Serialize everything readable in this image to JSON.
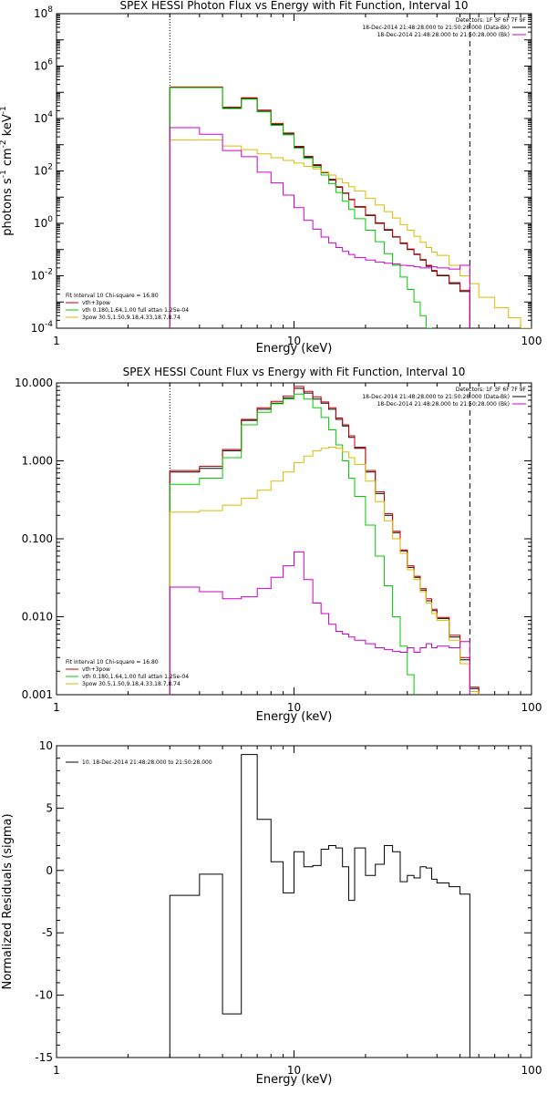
{
  "chart_data": [
    {
      "type": "line",
      "title": "SPEX HESSI Photon Flux vs Energy with Fit Function, Interval 10",
      "xlabel": "Energy (keV)",
      "ylabel_parts": [
        "photons s",
        "-1",
        " cm",
        "-2",
        " keV",
        "-1"
      ],
      "x_scale": "log",
      "y_scale": "log",
      "xlim": [
        1,
        100
      ],
      "ylim": [
        0.0001,
        100000000
      ],
      "x_ticks": [
        {
          "v": 1,
          "label": "1"
        },
        {
          "v": 10,
          "label": "10"
        },
        {
          "v": 100,
          "label": "100"
        }
      ],
      "y_ticks": [
        {
          "v": 0.0001,
          "base": "10",
          "exp": "-4"
        },
        {
          "v": 0.01,
          "base": "10",
          "exp": "-2"
        },
        {
          "v": 1,
          "base": "10",
          "exp": "0"
        },
        {
          "v": 100,
          "base": "10",
          "exp": "2"
        },
        {
          "v": 10000,
          "base": "10",
          "exp": "4"
        },
        {
          "v": 1000000,
          "base": "10",
          "exp": "6"
        },
        {
          "v": 100000000,
          "base": "10",
          "exp": "8"
        }
      ],
      "vlines": [
        {
          "x": 3,
          "style": "dotted",
          "color": "#000000"
        },
        {
          "x": 55,
          "style": "dashed",
          "color": "#000000"
        }
      ],
      "legend_top_right": {
        "detectors": "Detectors: 1F 3F 6F 7F 9F",
        "entries": [
          {
            "text": "18-Dec-2014 21:48:28.000 to 21:50:28.000 (Data-Bk)",
            "color": "#000000"
          },
          {
            "text": "18-Dec-2014 21:48:28.000 to 21:50:28.000 (Bk)",
            "color": "#cc00cc"
          }
        ]
      },
      "legend_bottom_left": {
        "header": "Fit Interval 10   Chi-square = 16.80",
        "entries": [
          {
            "text": "vth+3pow",
            "color": "#cc0000"
          },
          {
            "text": "vth 0.180,1.64,1.00  full attan 1.25e-04",
            "color": "#00cc00"
          },
          {
            "text": "3pow 30.5,1.50,9.18,4.33,18.7,8.74",
            "color": "#ddbb00"
          }
        ]
      },
      "edges": [
        3,
        4,
        5,
        6,
        7,
        8,
        9,
        10,
        11,
        12,
        13,
        14,
        15,
        16,
        17,
        18,
        20,
        22,
        24,
        26,
        28,
        30,
        32,
        34,
        36,
        38,
        40,
        45,
        50,
        55,
        60,
        70,
        80,
        90,
        100
      ],
      "series": [
        {
          "color": "#000000",
          "values": [
            155000,
            155000,
            25000,
            58000,
            19000,
            6000,
            2600,
            800,
            330,
            160,
            85,
            45,
            24,
            14,
            8,
            4.2,
            2.0,
            1.0,
            0.55,
            0.3,
            0.17,
            0.1,
            0.065,
            0.04,
            0.023,
            0.015,
            0.01,
            0.005,
            0.0025,
            null,
            null,
            null,
            null,
            null
          ]
        },
        {
          "color": "#cc0000",
          "values": [
            160000,
            160000,
            27000,
            62000,
            21000,
            6500,
            2800,
            870,
            360,
            175,
            90,
            48,
            25,
            14.5,
            8.3,
            4.4,
            2.1,
            1.05,
            0.58,
            0.31,
            0.18,
            0.105,
            0.068,
            0.042,
            0.025,
            0.016,
            0.0105,
            0.0055,
            0.0028,
            null,
            null,
            null,
            null,
            null
          ]
        },
        {
          "color": "#00cc00",
          "values": [
            150000,
            150000,
            24000,
            55000,
            18000,
            5500,
            2400,
            750,
            300,
            140,
            70,
            33,
            15,
            7,
            3.4,
            1.5,
            0.55,
            0.2,
            0.07,
            0.025,
            0.009,
            0.003,
            0.001,
            0.0003,
            0.0001,
            null,
            null,
            null,
            null,
            null,
            null,
            null,
            null,
            null
          ]
        },
        {
          "color": "#ddbb00",
          "values": [
            1500,
            1500,
            900,
            650,
            450,
            320,
            250,
            200,
            150,
            120,
            90,
            70,
            50,
            35,
            25,
            17,
            9,
            5,
            2.8,
            1.6,
            0.9,
            0.55,
            0.32,
            0.19,
            0.12,
            0.08,
            0.06,
            0.025,
            0.01,
            0.005,
            0.0015,
            0.0006,
            0.00025,
            0.0001
          ]
        },
        {
          "color": "#cc00cc",
          "values": [
            4500,
            2500,
            600,
            350,
            90,
            35,
            12,
            4,
            1.3,
            0.6,
            0.3,
            0.18,
            0.12,
            0.085,
            0.065,
            0.05,
            0.04,
            0.033,
            0.03,
            0.028,
            0.025,
            0.024,
            0.022,
            0.02,
            0.02,
            0.022,
            0.02,
            0.018,
            0.025,
            null,
            null,
            null,
            null,
            null
          ]
        }
      ]
    },
    {
      "type": "line",
      "title": "SPEX HESSI Count Flux vs Energy with Fit Function, Interval 10",
      "xlabel": "Energy (keV)",
      "x_scale": "log",
      "y_scale": "log",
      "xlim": [
        1,
        100
      ],
      "ylim": [
        0.001,
        10
      ],
      "x_ticks": [
        {
          "v": 1,
          "label": "1"
        },
        {
          "v": 10,
          "label": "10"
        },
        {
          "v": 100,
          "label": "100"
        }
      ],
      "y_ticks": [
        {
          "v": 0.001,
          "label": "0.001"
        },
        {
          "v": 0.01,
          "label": "0.010"
        },
        {
          "v": 0.1,
          "label": "0.100"
        },
        {
          "v": 1,
          "label": "1.000"
        },
        {
          "v": 10,
          "label": "10.000"
        }
      ],
      "vlines": [
        {
          "x": 3,
          "style": "dotted",
          "color": "#000000"
        },
        {
          "x": 55,
          "style": "dashed",
          "color": "#000000"
        }
      ],
      "legend_top_right": {
        "detectors": "Detectors: 1F 3F 6F 7F 9F",
        "entries": [
          {
            "text": "18-Dec-2014 21:48:28.000 to 21:50:28.000 (Data-Bk)",
            "color": "#000000"
          },
          {
            "text": "18-Dec-2014 21:48:28.000 to 21:50:28.000 (Bk)",
            "color": "#cc00cc"
          }
        ]
      },
      "legend_bottom_left": {
        "header": "Fit Interval 10   Chi-square = 16.80",
        "entries": [
          {
            "text": "vth+3pow",
            "color": "#cc0000"
          },
          {
            "text": "vth 0.180,1.64,1.00  full attan 1.25e-04",
            "color": "#00cc00"
          },
          {
            "text": "3pow 30.5,1.50,9.18,4.33,18.7,8.74",
            "color": "#ddbb00"
          }
        ]
      },
      "edges": [
        3,
        4,
        5,
        6,
        7,
        8,
        9,
        10,
        11,
        12,
        13,
        14,
        15,
        16,
        17,
        18,
        20,
        22,
        24,
        26,
        28,
        30,
        32,
        34,
        36,
        38,
        40,
        45,
        50,
        55,
        60
      ],
      "series": [
        {
          "color": "#000000",
          "values": [
            0.72,
            0.8,
            1.35,
            3.3,
            4.6,
            5.5,
            6.4,
            8.5,
            7.4,
            6.2,
            5.5,
            4.6,
            3.4,
            2.8,
            2.0,
            1.45,
            0.72,
            0.38,
            0.2,
            0.12,
            0.07,
            0.043,
            0.032,
            0.022,
            0.016,
            0.012,
            0.0095,
            0.0055,
            0.0028,
            0.0012
          ]
        },
        {
          "color": "#cc0000",
          "values": [
            0.75,
            0.85,
            1.4,
            3.4,
            4.8,
            5.8,
            6.8,
            9.0,
            7.8,
            6.6,
            5.7,
            4.8,
            3.55,
            2.9,
            2.1,
            1.5,
            0.75,
            0.4,
            0.21,
            0.125,
            0.072,
            0.045,
            0.033,
            0.023,
            0.017,
            0.0125,
            0.0098,
            0.0058,
            0.003,
            0.00125
          ]
        },
        {
          "color": "#00cc00",
          "values": [
            0.5,
            0.6,
            1.1,
            2.9,
            4.2,
            5.4,
            6.2,
            7.2,
            6.2,
            4.8,
            3.6,
            2.5,
            1.6,
            1.0,
            0.6,
            0.35,
            0.15,
            0.06,
            0.025,
            0.01,
            0.0042,
            0.0018,
            null,
            null,
            null,
            null,
            null,
            null,
            null,
            null
          ]
        },
        {
          "color": "#ddbb00",
          "values": [
            0.22,
            0.23,
            0.27,
            0.33,
            0.42,
            0.55,
            0.72,
            0.95,
            1.15,
            1.35,
            1.45,
            1.5,
            1.45,
            1.3,
            1.1,
            0.9,
            0.55,
            0.3,
            0.17,
            0.1,
            0.065,
            0.04,
            0.03,
            0.021,
            0.015,
            0.011,
            0.009,
            0.005,
            0.0025,
            0.0011
          ]
        },
        {
          "color": "#cc00cc",
          "values": [
            0.024,
            0.021,
            0.017,
            0.018,
            0.023,
            0.032,
            0.045,
            0.068,
            0.03,
            0.015,
            0.011,
            0.008,
            0.0065,
            0.006,
            0.0055,
            0.005,
            0.0045,
            0.004,
            0.0038,
            0.0036,
            0.0035,
            0.004,
            0.0035,
            0.004,
            0.0045,
            0.004,
            0.0042,
            0.004,
            0.0048,
            null
          ]
        }
      ]
    },
    {
      "type": "line",
      "title": "",
      "xlabel": "Energy (keV)",
      "ylabel": "Normalized Residuals (sigma)",
      "x_scale": "log",
      "y_scale": "linear",
      "xlim": [
        1,
        100
      ],
      "ylim": [
        -15,
        10
      ],
      "x_ticks": [
        {
          "v": 1,
          "label": "1"
        },
        {
          "v": 10,
          "label": "10"
        },
        {
          "v": 100,
          "label": "100"
        }
      ],
      "y_ticks": [
        {
          "v": -15,
          "label": "-15"
        },
        {
          "v": -10,
          "label": "-10"
        },
        {
          "v": -5,
          "label": "-5"
        },
        {
          "v": 0,
          "label": "0"
        },
        {
          "v": 5,
          "label": "5"
        },
        {
          "v": 10,
          "label": "10"
        }
      ],
      "legend_top_left": {
        "text": "10. 18-Dec-2014 21:48:28.000 to 21:50:28.000",
        "color": "#000000"
      },
      "edges": [
        3,
        4,
        5,
        6,
        7,
        8,
        9,
        10,
        11,
        12,
        13,
        14,
        15,
        16,
        17,
        18,
        20,
        22,
        24,
        26,
        28,
        30,
        32,
        34,
        36,
        38,
        40,
        45,
        50,
        55
      ],
      "series": [
        {
          "color": "#000000",
          "values": [
            -2.0,
            -0.3,
            -11.5,
            9.3,
            4.1,
            0.7,
            -1.8,
            1.5,
            0.3,
            0.4,
            1.7,
            2.0,
            1.8,
            0.3,
            -2.4,
            1.8,
            -0.4,
            0.5,
            2.0,
            1.5,
            -0.9,
            -0.4,
            -0.6,
            0.3,
            0.2,
            -0.7,
            -1.0,
            -1.3,
            -1.9
          ]
        }
      ]
    }
  ]
}
